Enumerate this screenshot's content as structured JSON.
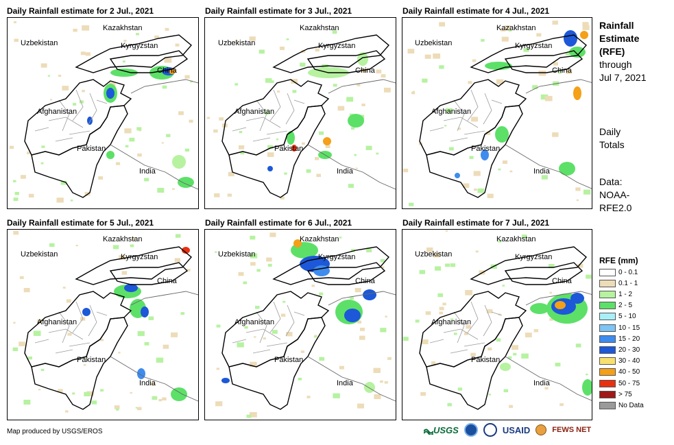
{
  "panels": [
    {
      "title": "Daily Rainfall estimate for 2 Jul., 2021"
    },
    {
      "title": "Daily Rainfall estimate for 3 Jul., 2021"
    },
    {
      "title": "Daily Rainfall estimate for 4 Jul., 2021"
    },
    {
      "title": "Daily Rainfall estimate for 5 Jul., 2021"
    },
    {
      "title": "Daily Rainfall estimate for 6 Jul., 2021"
    },
    {
      "title": "Daily Rainfall estimate for 7 Jul., 2021"
    }
  ],
  "places": {
    "kazakhstan": "Kazakhstan",
    "uzbekistan": "Uzbekistan",
    "kyrgyzstan": "Kyrgyzstan",
    "china": "China",
    "afghanistan": "Afghanistan",
    "pakistan": "Pakistan",
    "india": "India"
  },
  "side": {
    "title_line1": "Rainfall",
    "title_line2": "Estimate",
    "title_line3": "(RFE)",
    "through": "through",
    "date": "Jul 7, 2021",
    "daily": "Daily",
    "totals": "Totals",
    "data_line1": "Data:",
    "data_line2": "NOAA-",
    "data_line3": "RFE2.0"
  },
  "legend": {
    "title": "RFE (mm)",
    "items": [
      {
        "label": "0 - 0.1",
        "color": "#ffffff"
      },
      {
        "label": "0.1 - 1",
        "color": "#eddcb8"
      },
      {
        "label": "1 - 2",
        "color": "#b6f2a0"
      },
      {
        "label": "2 - 5",
        "color": "#5de068"
      },
      {
        "label": "5 - 10",
        "color": "#a8f0f8"
      },
      {
        "label": "10 - 15",
        "color": "#7ec4f4"
      },
      {
        "label": "15 - 20",
        "color": "#3f8cee"
      },
      {
        "label": "20 - 30",
        "color": "#1c58d8"
      },
      {
        "label": "30 - 40",
        "color": "#f8e070"
      },
      {
        "label": "40 - 50",
        "color": "#f4a018"
      },
      {
        "label": "50 - 75",
        "color": "#e83010"
      },
      {
        "label": "> 75",
        "color": "#a01818"
      },
      {
        "label": "No Data",
        "color": "#9a9a9a"
      }
    ]
  },
  "footer": "Map produced by USGS/EROS",
  "logos": {
    "usgs": "USGS",
    "usaid": "USAID",
    "fewsnet": "FEWS NET"
  }
}
